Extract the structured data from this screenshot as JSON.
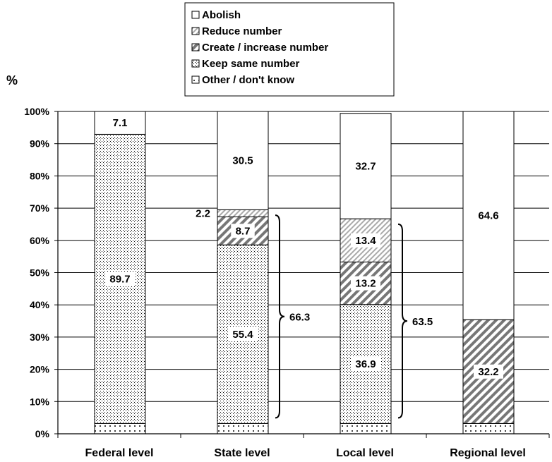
{
  "chart_data": {
    "type": "bar",
    "stacked": true,
    "ylabel": "%",
    "ylim": [
      0,
      100
    ],
    "yticks": [
      "0%",
      "10%",
      "20%",
      "30%",
      "40%",
      "50%",
      "60%",
      "70%",
      "80%",
      "90%",
      "100%"
    ],
    "grid": true,
    "legend_position": "top-center",
    "categories": [
      "Federal level",
      "State level",
      "Local level",
      "Regional level"
    ],
    "series": [
      {
        "name": "Other / don't know",
        "values": [
          3.2,
          3.2,
          3.2,
          3.2
        ],
        "labels": [
          "",
          "",
          "",
          ""
        ],
        "pattern": "sparse-dots"
      },
      {
        "name": "Keep same number",
        "values": [
          89.7,
          55.4,
          36.9,
          0
        ],
        "labels": [
          "89.7",
          "55.4",
          "36.9",
          ""
        ],
        "pattern": "dense-dots"
      },
      {
        "name": "Create / increase number",
        "values": [
          0,
          8.7,
          13.2,
          32.2
        ],
        "labels": [
          "",
          "8.7",
          "13.2",
          "32.2"
        ],
        "pattern": "wide-stripes"
      },
      {
        "name": "Reduce number",
        "values": [
          0,
          2.2,
          13.4,
          0
        ],
        "labels": [
          "",
          "2.2",
          "13.4",
          ""
        ],
        "pattern": "light-stripes"
      },
      {
        "name": "Abolish",
        "values": [
          7.1,
          30.5,
          32.7,
          64.6
        ],
        "labels": [
          "7.1",
          "30.5",
          "32.7",
          "64.6"
        ],
        "pattern": "white"
      }
    ],
    "legend_order": [
      "Abolish",
      "Reduce number",
      "Create / increase number",
      "Keep same number",
      "Other / don't know"
    ],
    "annotations": [
      {
        "category": "State level",
        "from": 3.2,
        "to": 70,
        "text": "66.3"
      },
      {
        "category": "Local level",
        "from": 3.2,
        "to": 67.2,
        "text": "63.5"
      }
    ],
    "colors": {
      "stroke": "#000000",
      "fill": "#ffffff",
      "grid": "#000000"
    }
  }
}
